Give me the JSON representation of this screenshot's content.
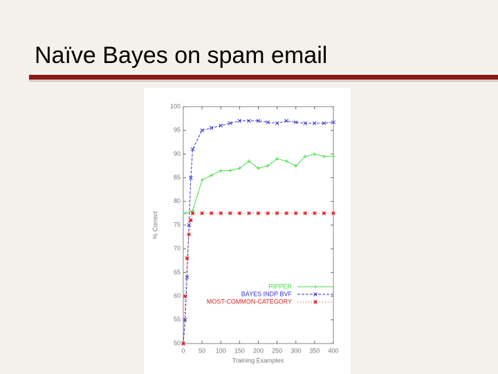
{
  "slide": {
    "title": "Naïve Bayes on spam email"
  },
  "chart_data": {
    "type": "line",
    "xlabel": "Training Examples",
    "ylabel": "% Correct",
    "xlim": [
      0,
      400
    ],
    "xticks": [
      0,
      50,
      100,
      150,
      200,
      250,
      300,
      350,
      400
    ],
    "ylim": [
      50,
      100
    ],
    "yticks": [
      50,
      55,
      60,
      65,
      70,
      75,
      80,
      85,
      90,
      95,
      100
    ],
    "series": [
      {
        "name": "RIPPER",
        "color": "#44dd44",
        "marker": "plus",
        "dash": "none",
        "x": [
          5,
          25,
          50,
          75,
          100,
          125,
          150,
          175,
          200,
          225,
          250,
          275,
          300,
          325,
          350,
          375,
          400
        ],
        "values": [
          77.5,
          78,
          84.5,
          85.5,
          86.5,
          86.5,
          87,
          88.5,
          87,
          87.5,
          89,
          88.5,
          87.5,
          89.5,
          90,
          89.5,
          89.5
        ]
      },
      {
        "name": "BAYES INDP BVF",
        "color": "#3333cc",
        "marker": "cross",
        "dash": "4 2",
        "x": [
          0,
          5,
          10,
          15,
          20,
          25,
          50,
          75,
          100,
          125,
          150,
          175,
          200,
          225,
          250,
          275,
          300,
          325,
          350,
          375,
          400
        ],
        "values": [
          50,
          55,
          64,
          75,
          85,
          91,
          95,
          95.5,
          96,
          96.5,
          97,
          97,
          97,
          96.7,
          96.5,
          97,
          96.7,
          96.5,
          96.5,
          96.5,
          96.7
        ]
      },
      {
        "name": "MOST-COMMON-CATEGORY",
        "color": "#dd2222",
        "marker": "star",
        "dash": "1 3",
        "x": [
          0,
          5,
          10,
          15,
          20,
          25,
          50,
          75,
          100,
          125,
          150,
          175,
          200,
          225,
          250,
          275,
          300,
          325,
          350,
          375,
          400
        ],
        "values": [
          50,
          60,
          68,
          73,
          76,
          77.5,
          77.5,
          77.5,
          77.5,
          77.5,
          77.5,
          77.5,
          77.5,
          77.5,
          77.5,
          77.5,
          77.5,
          77.5,
          77.5,
          77.5,
          77.5
        ]
      }
    ]
  }
}
